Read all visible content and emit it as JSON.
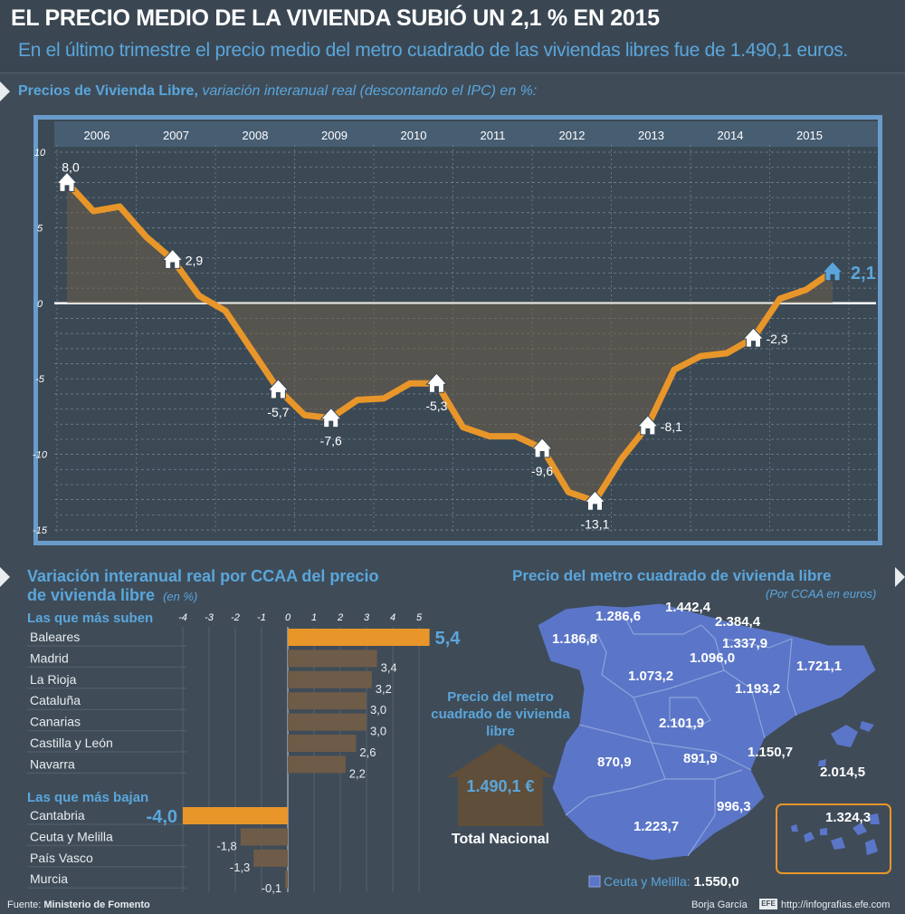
{
  "header": {
    "title": "EL PRECIO MEDIO DE LA VIVIENDA SUBIÓ UN 2,1 % EN 2015",
    "subtitle": "En el último trimestre el precio medio del metro cuadrado de las viviendas libres fue de 1.490,1 euros."
  },
  "line_section": {
    "title": "Precios de Vivienda Libre,",
    "subtitle": "variación interanual real (descontando el IPC) en %:"
  },
  "bars_section": {
    "title_line1": "Variación interanual real por CCAA del precio",
    "title_line2": "de vivienda libre",
    "unit": "(en %)",
    "up_label": "Las que más suben",
    "down_label": "Las que más bajan"
  },
  "map_section": {
    "title": "Precio del metro cuadrado de vivienda libre",
    "subtitle": "(Por CCAA en euros)",
    "national_caption": "Precio del metro cuadrado de vivienda libre",
    "national_value": "1.490,1 €",
    "national_label": "Total Nacional",
    "ceuta_label": "Ceuta y Melilla:",
    "ceuta_value": "1.550,0"
  },
  "footer": {
    "source_prefix": "Fuente:",
    "source": "Ministerio de Fomento",
    "author": "Borja García",
    "url": "http://infografias.efe.com"
  },
  "colors": {
    "accent": "#e8962a",
    "blue": "#5aa6dc",
    "map": "#5b76c8",
    "frame": "#6a9ccb"
  },
  "chart_data": [
    {
      "type": "line",
      "x_ticks": [
        "2006",
        "2007",
        "2008",
        "2009",
        "2010",
        "2011",
        "2012",
        "2013",
        "2014",
        "2015"
      ],
      "y_ticks": [
        "10",
        "5",
        "0",
        "-5",
        "-10",
        "-15"
      ],
      "ylim": [
        -15,
        10
      ],
      "series": [
        {
          "values": [
            8.0,
            6.1,
            6.4,
            4.4,
            2.9,
            0.5,
            -0.5,
            -3.1,
            -5.7,
            -7.4,
            -7.6,
            -6.4,
            -6.3,
            -5.3,
            -5.3,
            -8.2,
            -8.8,
            -8.8,
            -9.6,
            -12.5,
            -13.1,
            -10.3,
            -8.1,
            -4.4,
            -3.5,
            -3.3,
            -2.3,
            0.3,
            0.9,
            2.1
          ]
        }
      ],
      "annotations": [
        {
          "label": "8,0",
          "index": 0
        },
        {
          "label": "2,9",
          "index": 4
        },
        {
          "label": "-5,7",
          "index": 8
        },
        {
          "label": "-7,6",
          "index": 10
        },
        {
          "label": "-5,3",
          "index": 14
        },
        {
          "label": "-9,6",
          "index": 18
        },
        {
          "label": "-13,1",
          "index": 20
        },
        {
          "label": "-8,1",
          "index": 22
        },
        {
          "label": "-2,3",
          "index": 26
        },
        {
          "label": "2,1",
          "index": 29
        }
      ]
    },
    {
      "type": "bar",
      "orientation": "horizontal",
      "x_ticks": [
        "-4",
        "-3",
        "-2",
        "-1",
        "0",
        "1",
        "2",
        "3",
        "4",
        "5"
      ],
      "xlim": [
        -4,
        5
      ],
      "rising": [
        {
          "name": "Baleares",
          "value": 5.4,
          "label": "5,4"
        },
        {
          "name": "Madrid",
          "value": 3.4,
          "label": "3,4"
        },
        {
          "name": "La Rioja",
          "value": 3.2,
          "label": "3,2"
        },
        {
          "name": "Cataluña",
          "value": 3.0,
          "label": "3,0"
        },
        {
          "name": "Canarias",
          "value": 3.0,
          "label": "3,0"
        },
        {
          "name": "Castilla y León",
          "value": 2.6,
          "label": "2,6"
        },
        {
          "name": "Navarra",
          "value": 2.2,
          "label": "2,2"
        }
      ],
      "falling": [
        {
          "name": "Cantabria",
          "value": -4.0,
          "label": "-4,0"
        },
        {
          "name": "Ceuta y Melilla",
          "value": -1.8,
          "label": "-1,8"
        },
        {
          "name": "País Vasco",
          "value": -1.3,
          "label": "-1,3"
        },
        {
          "name": "Murcia",
          "value": -0.1,
          "label": "-0,1"
        }
      ]
    }
  ],
  "map_values": [
    "1.286,6",
    "1.442,4",
    "2.384,4",
    "1.186,8",
    "1.337,9",
    "1.096,0",
    "1.073,2",
    "1.721,1",
    "1.193,2",
    "2.101,9",
    "870,9",
    "891,9",
    "1.150,7",
    "2.014,5",
    "996,3",
    "1.223,7",
    "1.324,3"
  ]
}
